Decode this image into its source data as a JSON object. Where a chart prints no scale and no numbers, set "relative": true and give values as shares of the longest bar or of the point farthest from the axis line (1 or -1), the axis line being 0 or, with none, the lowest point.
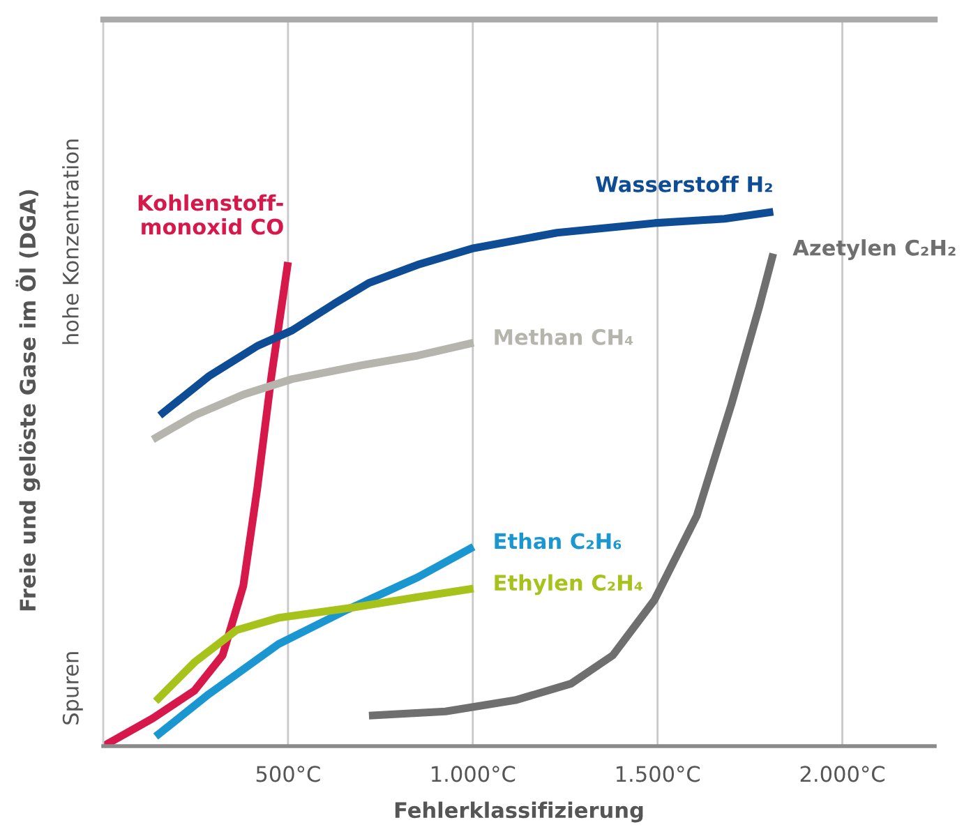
{
  "chart_data": {
    "type": "line",
    "relative": true,
    "xlabel": "Fehlerklassifizierung",
    "ylabel": "Freie und gelöste Gase im Öl (DGA)",
    "annotations": [
      "Spuren",
      "hohe Konzentration"
    ],
    "xlim": [
      0,
      2250
    ],
    "xticks": [
      {
        "value": 500,
        "label": "500°C"
      },
      {
        "value": 1000,
        "label": "1.000°C"
      },
      {
        "value": 1500,
        "label": "1.500°C"
      },
      {
        "value": 2000,
        "label": "2.000°C"
      }
    ],
    "grid": "x",
    "legend": false,
    "marker": "none",
    "line_style": "solid",
    "series": [
      {
        "name": "Kohlenstoff-\nmonoxid CO",
        "color": "#d6184a",
        "x": [
          0,
          134,
          247,
          323,
          379,
          417,
          455,
          500
        ],
        "values": [
          0,
          0.052,
          0.104,
          0.17,
          0.3,
          0.483,
          0.692,
          0.906
        ]
      },
      {
        "name": "Wasserstoff H₂",
        "color": "#0f4c96",
        "x": [
          153,
          285,
          417,
          511,
          625,
          719,
          851,
          1002,
          1228,
          1492,
          1681,
          1813
        ],
        "values": [
          0.619,
          0.692,
          0.749,
          0.778,
          0.828,
          0.867,
          0.901,
          0.932,
          0.961,
          0.979,
          0.987,
          1
        ]
      },
      {
        "name": "Methan CH₄",
        "color": "#b5b5ad",
        "x": [
          134,
          247,
          379,
          511,
          700,
          851,
          1002
        ],
        "values": [
          0.574,
          0.619,
          0.658,
          0.687,
          0.713,
          0.731,
          0.755
        ]
      },
      {
        "name": "Azetylen C₂H₂",
        "color": "#6f6f6f",
        "x": [
          719,
          926,
          1115,
          1266,
          1379,
          1492,
          1606,
          1700,
          1775,
          1813
        ],
        "values": [
          0.057,
          0.065,
          0.086,
          0.117,
          0.17,
          0.274,
          0.431,
          0.64,
          0.822,
          0.922
        ]
      },
      {
        "name": "Ethan C₂H₆",
        "color": "#1a97d0",
        "x": [
          142,
          285,
          474,
          662,
          851,
          1002
        ],
        "values": [
          0.018,
          0.097,
          0.191,
          0.256,
          0.316,
          0.373
        ]
      },
      {
        "name": "Ethylen C₂H₄",
        "color": "#a8c21c",
        "x": [
          142,
          247,
          360,
          474,
          662,
          851,
          1002
        ],
        "values": [
          0.084,
          0.157,
          0.217,
          0.24,
          0.258,
          0.279,
          0.295
        ]
      }
    ]
  }
}
